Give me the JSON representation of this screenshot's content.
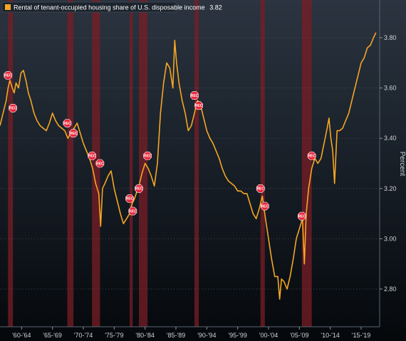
{
  "chart_data": {
    "type": "line",
    "legend": {
      "label": "Rental of tenant-occupied housing share of U.S. disposable income",
      "value": "3.82",
      "placement": "top-left"
    },
    "ylabel": "Percent",
    "ylim": [
      2.65,
      3.95
    ],
    "y_ticks": [
      2.8,
      3.0,
      3.2,
      3.4,
      3.6,
      3.8
    ],
    "y_tick_labels": [
      "2.80",
      "3.00",
      "3.20",
      "3.40",
      "3.60",
      "3.80"
    ],
    "xlim": [
      1959.0,
      2020.5
    ],
    "x_ticks": [
      1962.5,
      1967.5,
      1972.5,
      1977.5,
      1982.5,
      1987.5,
      1992.5,
      1997.5,
      2002.5,
      2007.5,
      2012.5,
      2017.5
    ],
    "x_tick_labels": [
      "'60-'64",
      "'65-'69",
      "'70-'74",
      "'75-'79",
      "'80-'84",
      "'85-'89",
      "'90-'94",
      "'95-'99",
      "'00-'04",
      "'05-'09",
      "'10-'14",
      "'15-'19"
    ],
    "recessions": [
      {
        "start": 1960.3,
        "end": 1961.1
      },
      {
        "start": 1969.9,
        "end": 1970.9
      },
      {
        "start": 1973.9,
        "end": 1975.2
      },
      {
        "start": 1980.0,
        "end": 1980.5
      },
      {
        "start": 1981.5,
        "end": 1982.9
      },
      {
        "start": 1990.5,
        "end": 1991.2
      },
      {
        "start": 2001.2,
        "end": 2001.9
      },
      {
        "start": 2007.9,
        "end": 2009.5
      }
    ],
    "rec_label": "REC",
    "rec_markers": [
      {
        "x": 1960.3,
        "y": 3.65
      },
      {
        "x": 1961.1,
        "y": 3.52
      },
      {
        "x": 1969.9,
        "y": 3.46
      },
      {
        "x": 1970.9,
        "y": 3.42
      },
      {
        "x": 1973.9,
        "y": 3.33
      },
      {
        "x": 1975.2,
        "y": 3.3
      },
      {
        "x": 1980.0,
        "y": 3.16
      },
      {
        "x": 1980.5,
        "y": 3.11
      },
      {
        "x": 1981.5,
        "y": 3.2
      },
      {
        "x": 1982.9,
        "y": 3.33
      },
      {
        "x": 1990.5,
        "y": 3.57
      },
      {
        "x": 1991.2,
        "y": 3.53
      },
      {
        "x": 2001.2,
        "y": 3.2
      },
      {
        "x": 2001.9,
        "y": 3.13
      },
      {
        "x": 2007.9,
        "y": 3.09
      },
      {
        "x": 2009.5,
        "y": 3.33
      }
    ],
    "series": [
      {
        "color": "#f5a623",
        "x": [
          1959.0,
          1959.5,
          1960.0,
          1960.3,
          1960.6,
          1961.0,
          1961.3,
          1961.6,
          1962.0,
          1962.4,
          1962.8,
          1963.2,
          1963.6,
          1964.0,
          1964.5,
          1965.0,
          1965.5,
          1966.0,
          1966.5,
          1967.0,
          1967.5,
          1968.0,
          1968.5,
          1969.0,
          1969.5,
          1970.0,
          1970.5,
          1971.0,
          1971.5,
          1972.0,
          1972.5,
          1973.0,
          1973.5,
          1974.0,
          1974.5,
          1975.0,
          1975.3,
          1975.6,
          1976.0,
          1976.5,
          1977.0,
          1977.5,
          1978.0,
          1978.5,
          1979.0,
          1979.5,
          1980.0,
          1980.4,
          1980.8,
          1981.2,
          1981.6,
          1982.0,
          1982.5,
          1983.0,
          1983.5,
          1984.0,
          1984.5,
          1985.0,
          1985.5,
          1986.0,
          1986.5,
          1987.0,
          1987.3,
          1987.6,
          1988.0,
          1988.5,
          1989.0,
          1989.5,
          1990.0,
          1990.5,
          1991.0,
          1991.5,
          1992.0,
          1992.5,
          1993.0,
          1993.5,
          1994.0,
          1994.5,
          1995.0,
          1995.5,
          1996.0,
          1996.5,
          1997.0,
          1997.5,
          1998.0,
          1998.5,
          1999.0,
          1999.5,
          2000.0,
          2000.5,
          2001.0,
          2001.5,
          2002.0,
          2002.5,
          2003.0,
          2003.5,
          2004.0,
          2004.3,
          2004.6,
          2005.0,
          2005.5,
          2006.0,
          2006.5,
          2007.0,
          2007.5,
          2008.0,
          2008.3,
          2008.6,
          2009.0,
          2009.5,
          2010.0,
          2010.5,
          2011.0,
          2011.5,
          2012.0,
          2012.3,
          2012.6,
          2012.9,
          2013.2,
          2013.6,
          2014.0,
          2014.5,
          2015.0,
          2015.5,
          2016.0,
          2016.5,
          2017.0,
          2017.5,
          2018.0,
          2018.5,
          2019.0,
          2019.5,
          2019.9
        ],
        "y": [
          3.45,
          3.5,
          3.55,
          3.6,
          3.63,
          3.6,
          3.58,
          3.62,
          3.6,
          3.66,
          3.67,
          3.63,
          3.58,
          3.55,
          3.5,
          3.47,
          3.45,
          3.44,
          3.43,
          3.46,
          3.5,
          3.47,
          3.45,
          3.44,
          3.43,
          3.4,
          3.42,
          3.44,
          3.46,
          3.42,
          3.38,
          3.35,
          3.32,
          3.28,
          3.22,
          3.18,
          3.05,
          3.2,
          3.22,
          3.25,
          3.27,
          3.2,
          3.15,
          3.1,
          3.06,
          3.08,
          3.1,
          3.14,
          3.16,
          3.19,
          3.22,
          3.26,
          3.3,
          3.28,
          3.25,
          3.21,
          3.3,
          3.5,
          3.62,
          3.7,
          3.68,
          3.6,
          3.79,
          3.7,
          3.62,
          3.55,
          3.5,
          3.43,
          3.45,
          3.5,
          3.55,
          3.53,
          3.48,
          3.43,
          3.4,
          3.38,
          3.35,
          3.32,
          3.28,
          3.25,
          3.23,
          3.22,
          3.21,
          3.19,
          3.19,
          3.18,
          3.18,
          3.14,
          3.1,
          3.08,
          3.12,
          3.17,
          3.08,
          3.0,
          2.92,
          2.85,
          2.85,
          2.76,
          2.84,
          2.83,
          2.8,
          2.85,
          2.92,
          3.0,
          3.04,
          3.08,
          2.9,
          3.1,
          3.2,
          3.28,
          3.32,
          3.3,
          3.32,
          3.38,
          3.44,
          3.48,
          3.4,
          3.35,
          3.22,
          3.43,
          3.43,
          3.44,
          3.47,
          3.5,
          3.55,
          3.6,
          3.65,
          3.7,
          3.72,
          3.76,
          3.77,
          3.8,
          3.82
        ]
      }
    ]
  }
}
